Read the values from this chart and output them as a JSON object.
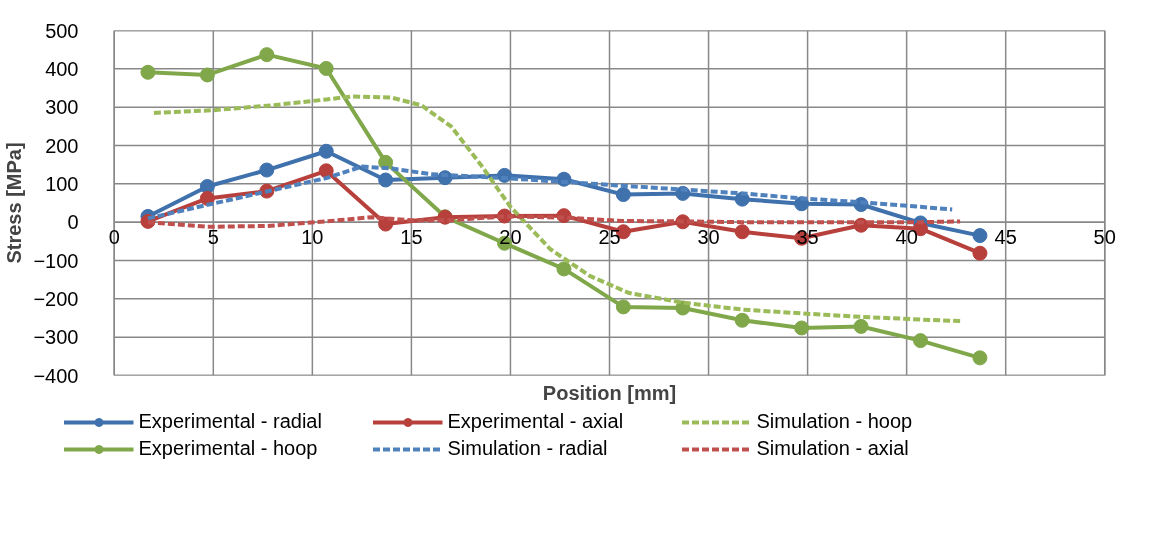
{
  "chart_data": {
    "type": "line",
    "xlabel": "Position [mm]",
    "ylabel": "Stress [MPa]",
    "xlim": [
      0,
      50
    ],
    "xticks": [
      0,
      5,
      10,
      15,
      20,
      25,
      30,
      35,
      40,
      45,
      50
    ],
    "ylim": [
      -400,
      500
    ],
    "yticks": [
      -400,
      -300,
      -200,
      -100,
      0,
      100,
      200,
      300,
      400,
      500
    ],
    "grid": true,
    "legend": "bottom",
    "series": [
      {
        "name": "Experimental - radial",
        "color": "#3f71ad",
        "marker": "circle",
        "line_style": "solid",
        "x": [
          1.7,
          4.7,
          7.7,
          10.7,
          13.7,
          16.7,
          19.7,
          22.7,
          25.7,
          28.7,
          31.7,
          34.7,
          37.7,
          40.7,
          43.7
        ],
        "values": [
          15,
          93,
          136,
          185,
          110,
          116,
          122,
          112,
          72,
          75,
          60,
          48,
          46,
          -2,
          -35
        ]
      },
      {
        "name": "Experimental - hoop",
        "color": "#80a84a",
        "marker": "circle",
        "line_style": "solid",
        "x": [
          1.7,
          4.7,
          7.7,
          10.7,
          13.7,
          16.7,
          19.7,
          22.7,
          25.7,
          28.7,
          31.7,
          34.7,
          37.7,
          40.7,
          43.7
        ],
        "values": [
          391,
          384,
          437,
          401,
          156,
          14,
          -55,
          -122,
          -221,
          -224,
          -256,
          -276,
          -272,
          -309,
          -354
        ]
      },
      {
        "name": "Experimental - axial",
        "color": "#b8403c",
        "marker": "circle",
        "line_style": "solid",
        "x": [
          1.7,
          4.7,
          7.7,
          10.7,
          13.7,
          16.7,
          19.7,
          22.7,
          25.7,
          28.7,
          31.7,
          34.7,
          37.7,
          40.7,
          43.7
        ],
        "values": [
          2,
          62,
          81,
          134,
          -5,
          13,
          16,
          17,
          -25,
          1,
          -25,
          -42,
          -8,
          -17,
          -81
        ]
      },
      {
        "name": "Simulation - radial",
        "color": "#4f81bd",
        "marker": "none",
        "line_style": "dashed",
        "x": [
          1.7,
          4.7,
          7.7,
          10.7,
          12.5,
          14,
          16,
          19.7,
          22.7,
          25.7,
          28.7,
          31.7,
          34.7,
          37.7,
          40.7,
          42.3
        ],
        "values": [
          10,
          45,
          80,
          115,
          145,
          140,
          125,
          115,
          105,
          95,
          85,
          75,
          62,
          52,
          40,
          33
        ]
      },
      {
        "name": "Simulation - hoop",
        "color": "#9bbb59",
        "marker": "none",
        "line_style": "dashed",
        "x": [
          2,
          5,
          8,
          10.7,
          12,
          14,
          15.5,
          17,
          18.5,
          20,
          22,
          24,
          26,
          28.7,
          31.7,
          34.7,
          37.7,
          40.7,
          42.7
        ],
        "values": [
          285,
          292,
          305,
          320,
          328,
          325,
          305,
          250,
          150,
          40,
          -70,
          -140,
          -185,
          -210,
          -228,
          -238,
          -247,
          -254,
          -258
        ]
      },
      {
        "name": "Simulation - axial",
        "color": "#c0504d",
        "marker": "none",
        "line_style": "dashed",
        "x": [
          1.7,
          4.7,
          7.7,
          10.7,
          13,
          15,
          17,
          19.7,
          22.7,
          25.7,
          28.7,
          31.7,
          34.7,
          37.7,
          40.7,
          42.7
        ],
        "values": [
          0,
          -12,
          -10,
          2,
          13,
          5,
          5,
          15,
          12,
          3,
          2,
          0,
          0,
          0,
          0,
          2
        ]
      }
    ]
  }
}
